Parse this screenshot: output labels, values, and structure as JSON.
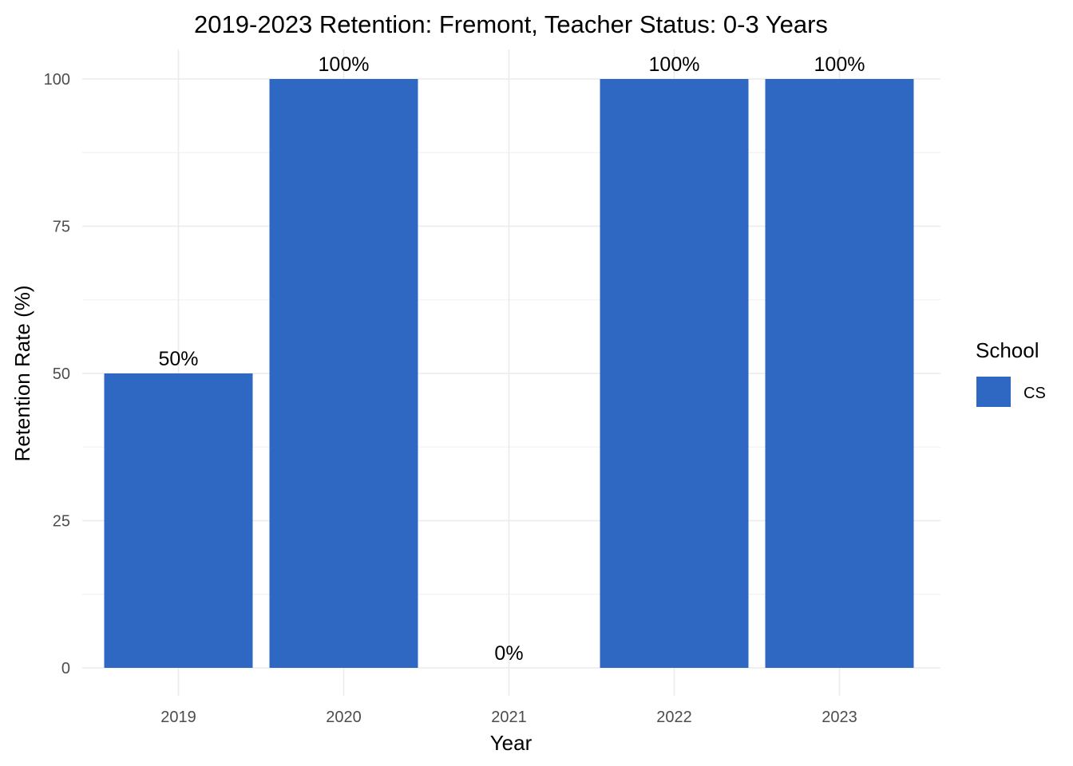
{
  "chart_data": {
    "type": "bar",
    "title": "2019-2023 Retention: Fremont, Teacher Status: 0-3 Years",
    "xlabel": "Year",
    "ylabel": "Retention Rate (%)",
    "categories": [
      "2019",
      "2020",
      "2021",
      "2022",
      "2023"
    ],
    "series": [
      {
        "name": "CS",
        "values": [
          50,
          100,
          0,
          100,
          100
        ],
        "labels": [
          "50%",
          "100%",
          "0%",
          "100%",
          "100%"
        ],
        "color": "#2e68c3"
      }
    ],
    "ylim": [
      0,
      100
    ],
    "yticks": [
      0,
      25,
      50,
      75,
      100
    ],
    "grid": true,
    "legend": {
      "title": "School",
      "position": "right",
      "entries": [
        "CS"
      ]
    }
  }
}
